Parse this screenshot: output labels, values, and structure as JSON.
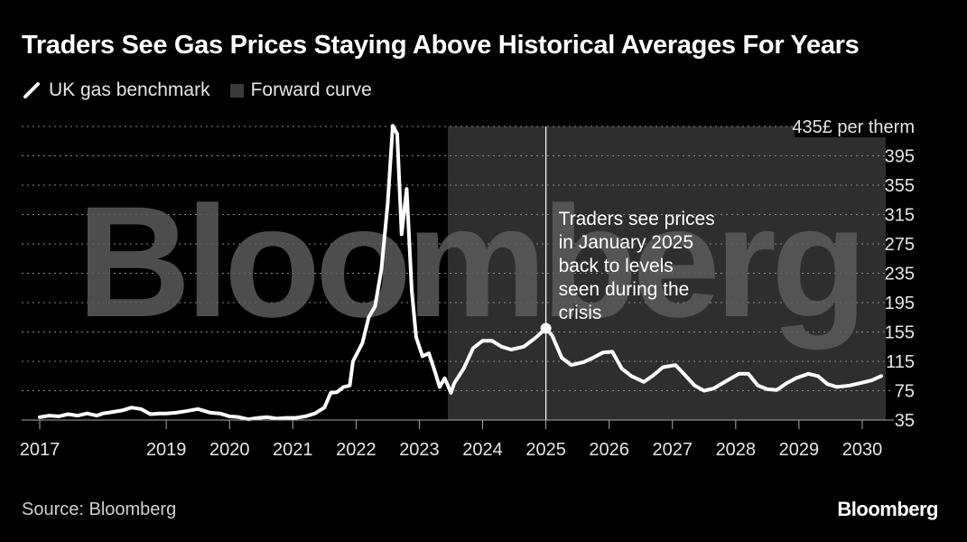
{
  "header": {
    "title": "Traders See Gas Prices Staying Above Historical Averages For Years"
  },
  "legend": {
    "items": [
      {
        "label": "UK gas benchmark",
        "icon": "white-line-icon",
        "color": "#ffffff"
      },
      {
        "label": "Forward curve",
        "icon": "gray-box-icon",
        "color": "#3a3a3a"
      }
    ]
  },
  "watermark": "Bloomberg",
  "annotation": {
    "lines": [
      "Traders see prices",
      "in January 2025",
      "back to levels",
      "seen during the",
      "crisis"
    ]
  },
  "footer": {
    "source": "Source: Bloomberg",
    "brand": "Bloomberg"
  },
  "chart_data": {
    "type": "line",
    "y_unit_label": "£ per therm",
    "ylim": [
      35,
      435
    ],
    "xlim": [
      2017.0,
      2030.5
    ],
    "y_ticks": [
      435,
      395,
      355,
      315,
      275,
      235,
      195,
      155,
      115,
      75,
      35
    ],
    "x_ticks": [
      2017,
      2019,
      2020,
      2021,
      2022,
      2023,
      2024,
      2025,
      2026,
      2027,
      2028,
      2029,
      2030
    ],
    "grid": "horizontal-dotted",
    "forward_curve_start": 2023.45,
    "highlight_x": 2025.0,
    "series": [
      {
        "name": "UK gas benchmark",
        "color": "#ffffff",
        "points": [
          [
            2017.0,
            39
          ],
          [
            2017.15,
            41
          ],
          [
            2017.3,
            40
          ],
          [
            2017.45,
            43
          ],
          [
            2017.6,
            41
          ],
          [
            2017.75,
            44
          ],
          [
            2017.9,
            41
          ],
          [
            2018.0,
            44
          ],
          [
            2018.15,
            46
          ],
          [
            2018.3,
            48
          ],
          [
            2018.45,
            52
          ],
          [
            2018.6,
            50
          ],
          [
            2018.75,
            43
          ],
          [
            2018.9,
            44
          ],
          [
            2019.0,
            44
          ],
          [
            2019.15,
            45
          ],
          [
            2019.3,
            47
          ],
          [
            2019.5,
            50
          ],
          [
            2019.7,
            45
          ],
          [
            2019.85,
            44
          ],
          [
            2020.0,
            40
          ],
          [
            2020.15,
            39
          ],
          [
            2020.3,
            36
          ],
          [
            2020.45,
            38
          ],
          [
            2020.6,
            39
          ],
          [
            2020.75,
            37
          ],
          [
            2020.9,
            38
          ],
          [
            2021.05,
            38
          ],
          [
            2021.2,
            40
          ],
          [
            2021.35,
            44
          ],
          [
            2021.5,
            52
          ],
          [
            2021.6,
            72
          ],
          [
            2021.7,
            73
          ],
          [
            2021.8,
            80
          ],
          [
            2021.9,
            82
          ],
          [
            2021.95,
            115
          ],
          [
            2022.1,
            140
          ],
          [
            2022.2,
            175
          ],
          [
            2022.3,
            190
          ],
          [
            2022.4,
            240
          ],
          [
            2022.5,
            330
          ],
          [
            2022.58,
            436
          ],
          [
            2022.65,
            425
          ],
          [
            2022.72,
            288
          ],
          [
            2022.8,
            350
          ],
          [
            2022.88,
            212
          ],
          [
            2022.95,
            148
          ],
          [
            2023.05,
            122
          ],
          [
            2023.15,
            126
          ],
          [
            2023.25,
            100
          ],
          [
            2023.32,
            80
          ],
          [
            2023.4,
            92
          ],
          [
            2023.5,
            72
          ],
          [
            2023.55,
            85
          ],
          [
            2023.7,
            105
          ],
          [
            2023.85,
            133
          ],
          [
            2024.0,
            143
          ],
          [
            2024.15,
            143
          ],
          [
            2024.3,
            135
          ],
          [
            2024.45,
            131
          ],
          [
            2024.65,
            135
          ],
          [
            2024.85,
            148
          ],
          [
            2025.0,
            160
          ],
          [
            2025.1,
            150
          ],
          [
            2025.25,
            120
          ],
          [
            2025.4,
            110
          ],
          [
            2025.6,
            114
          ],
          [
            2025.75,
            120
          ],
          [
            2025.9,
            127
          ],
          [
            2026.05,
            128
          ],
          [
            2026.2,
            105
          ],
          [
            2026.35,
            95
          ],
          [
            2026.55,
            87
          ],
          [
            2026.7,
            96
          ],
          [
            2026.85,
            107
          ],
          [
            2027.05,
            110
          ],
          [
            2027.2,
            96
          ],
          [
            2027.35,
            82
          ],
          [
            2027.5,
            75
          ],
          [
            2027.65,
            78
          ],
          [
            2027.85,
            88
          ],
          [
            2028.05,
            98
          ],
          [
            2028.2,
            98
          ],
          [
            2028.35,
            82
          ],
          [
            2028.5,
            77
          ],
          [
            2028.65,
            76
          ],
          [
            2028.8,
            85
          ],
          [
            2028.95,
            92
          ],
          [
            2029.15,
            98
          ],
          [
            2029.3,
            95
          ],
          [
            2029.45,
            84
          ],
          [
            2029.6,
            80
          ],
          [
            2029.8,
            82
          ],
          [
            2030.0,
            86
          ],
          [
            2030.15,
            89
          ],
          [
            2030.3,
            95
          ]
        ]
      }
    ]
  }
}
